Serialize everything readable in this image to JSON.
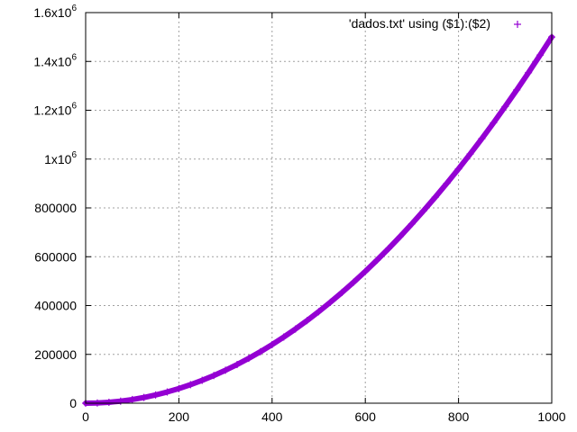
{
  "chart_data": {
    "type": "scatter",
    "title": "",
    "xlabel": "",
    "ylabel": "",
    "xlim": [
      0,
      1000
    ],
    "ylim": [
      0,
      1600000
    ],
    "grid": true,
    "legend_position": "top-right",
    "x_ticks": [
      "0",
      "200",
      "400",
      "600",
      "800",
      "1000"
    ],
    "x_tick_values": [
      0,
      200,
      400,
      600,
      800,
      1000
    ],
    "y_ticks": [
      {
        "value": 0,
        "label": "0"
      },
      {
        "value": 200000,
        "label": "200000"
      },
      {
        "value": 400000,
        "label": "400000"
      },
      {
        "value": 600000,
        "label": "600000"
      },
      {
        "value": 800000,
        "label": "800000"
      },
      {
        "value": 1000000,
        "mantissa": "1x10",
        "exponent": "6"
      },
      {
        "value": 1200000,
        "mantissa": "1.2x10",
        "exponent": "6"
      },
      {
        "value": 1400000,
        "mantissa": "1.4x10",
        "exponent": "6"
      },
      {
        "value": 1600000,
        "mantissa": "1.6x10",
        "exponent": "6"
      }
    ],
    "series": [
      {
        "name": "'dados.txt' using ($1):($2)",
        "marker": "plus",
        "color": "#9400d3",
        "x": [
          0,
          25,
          50,
          75,
          100,
          125,
          150,
          175,
          200,
          225,
          250,
          275,
          300,
          325,
          350,
          375,
          400,
          425,
          450,
          475,
          500,
          525,
          550,
          575,
          600,
          625,
          650,
          675,
          700,
          725,
          750,
          775,
          800,
          825,
          850,
          875,
          900,
          925,
          950,
          975,
          1000
        ],
        "y": [
          0,
          938,
          3750,
          8438,
          15000,
          23438,
          33750,
          45938,
          60000,
          75938,
          93750,
          113438,
          135000,
          158438,
          183750,
          210938,
          240000,
          270938,
          303750,
          338438,
          375000,
          413438,
          453750,
          495938,
          540000,
          585938,
          633750,
          683438,
          735000,
          788438,
          843750,
          900938,
          960000,
          1020938,
          1083750,
          1148438,
          1215000,
          1283438,
          1353750,
          1425938,
          1500000
        ]
      }
    ]
  }
}
